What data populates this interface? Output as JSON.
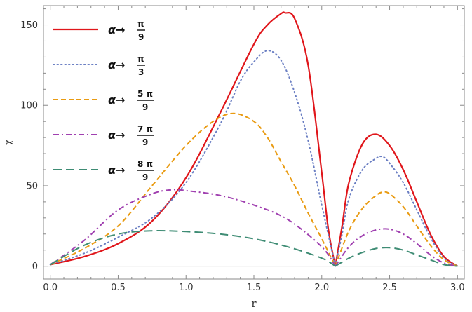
{
  "chart_data": {
    "type": "line",
    "xlabel": "r",
    "ylabel": "χ",
    "xlim": [
      -0.05,
      3.05
    ],
    "ylim": [
      -8,
      162
    ],
    "xticks": [
      0.0,
      0.5,
      1.0,
      1.5,
      2.0,
      2.5,
      3.0
    ],
    "xtick_labels": [
      "0.0",
      "0.5",
      "1.0",
      "1.5",
      "2.0",
      "2.5",
      "3.0"
    ],
    "yticks": [
      0,
      50,
      100,
      150
    ],
    "ytick_labels": [
      "0",
      "50",
      "100",
      "150"
    ],
    "grid": false,
    "legend_position": "top-left",
    "legend_prefix": "α→",
    "series": [
      {
        "name": "α→π/9",
        "legend_num": "π",
        "legend_den": "9",
        "color": "#e0161b",
        "style": "solid",
        "x": [
          0.0,
          0.25,
          0.5,
          0.75,
          1.0,
          1.25,
          1.5,
          1.6,
          1.7,
          1.73,
          1.8,
          1.9,
          2.0,
          2.05,
          2.1,
          2.15,
          2.2,
          2.3,
          2.4,
          2.5,
          2.6,
          2.7,
          2.8,
          2.9,
          3.0
        ],
        "y": [
          1,
          6,
          14,
          28,
          55,
          95,
          138,
          150,
          157,
          157.5,
          154,
          125,
          58,
          22,
          0,
          25,
          52,
          76,
          82,
          75,
          60,
          40,
          20,
          6,
          0
        ]
      },
      {
        "name": "α→π/3",
        "legend_num": "π",
        "legend_den": "3",
        "color": "#6b7fc3",
        "style": "dotted",
        "x": [
          0.0,
          0.25,
          0.5,
          0.75,
          1.0,
          1.25,
          1.4,
          1.5,
          1.6,
          1.7,
          1.8,
          1.9,
          2.0,
          2.1,
          2.15,
          2.2,
          2.3,
          2.4,
          2.45,
          2.5,
          2.6,
          2.7,
          2.8,
          2.9,
          3.0
        ],
        "y": [
          1,
          8,
          18,
          30,
          52,
          88,
          115,
          127,
          134,
          128,
          108,
          78,
          38,
          0,
          20,
          42,
          60,
          67,
          68,
          64,
          52,
          35,
          18,
          5,
          0
        ]
      },
      {
        "name": "α→5π/9",
        "legend_num": "5 π",
        "legend_den": "9",
        "color": "#e99b12",
        "style": "dashed",
        "x": [
          0.0,
          0.25,
          0.5,
          0.75,
          1.0,
          1.2,
          1.35,
          1.5,
          1.6,
          1.7,
          1.8,
          1.9,
          2.0,
          2.1,
          2.2,
          2.3,
          2.4,
          2.45,
          2.5,
          2.6,
          2.7,
          2.8,
          2.9,
          3.0
        ],
        "y": [
          1,
          11,
          25,
          50,
          75,
          90,
          95,
          90,
          80,
          65,
          50,
          33,
          17,
          0,
          22,
          36,
          44,
          46,
          45,
          37,
          25,
          13,
          4,
          0
        ]
      },
      {
        "name": "α→7π/9",
        "legend_num": "7 π",
        "legend_den": "9",
        "color": "#a040b0",
        "style": "dashdot",
        "x": [
          0.0,
          0.25,
          0.5,
          0.75,
          0.9,
          1.0,
          1.25,
          1.5,
          1.75,
          2.0,
          2.1,
          2.2,
          2.3,
          2.4,
          2.5,
          2.6,
          2.7,
          2.8,
          2.9,
          3.0
        ],
        "y": [
          1,
          16,
          35,
          45,
          47.5,
          47,
          44,
          38,
          29,
          12,
          0,
          12,
          19,
          22.5,
          23,
          20,
          14,
          7,
          2,
          0
        ]
      },
      {
        "name": "α→8π/9",
        "legend_num": "8 π",
        "legend_den": "9",
        "color": "#3e8c74",
        "style": "longdash",
        "x": [
          0.0,
          0.25,
          0.5,
          0.75,
          1.0,
          1.25,
          1.5,
          1.75,
          2.0,
          2.1,
          2.2,
          2.3,
          2.4,
          2.5,
          2.6,
          2.7,
          2.8,
          2.9,
          3.0
        ],
        "y": [
          1,
          13,
          20,
          22,
          21.5,
          20,
          17,
          12,
          5,
          0,
          5,
          8.5,
          11,
          11.5,
          10,
          7,
          4,
          1,
          0
        ]
      }
    ]
  }
}
